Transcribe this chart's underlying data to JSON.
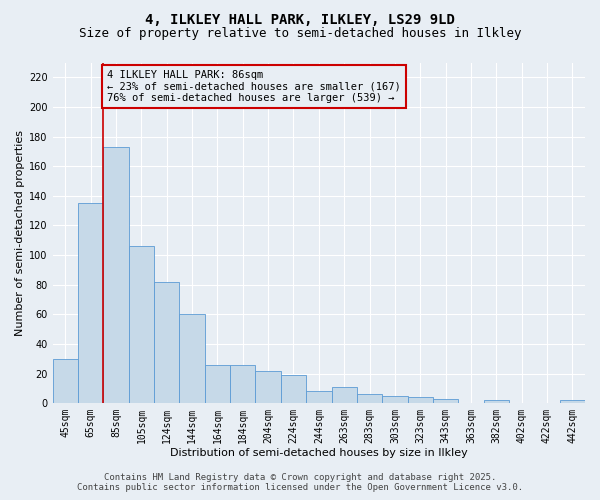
{
  "title": "4, ILKLEY HALL PARK, ILKLEY, LS29 9LD",
  "subtitle": "Size of property relative to semi-detached houses in Ilkley",
  "xlabel": "Distribution of semi-detached houses by size in Ilkley",
  "ylabel": "Number of semi-detached properties",
  "categories": [
    "45sqm",
    "65sqm",
    "85sqm",
    "105sqm",
    "124sqm",
    "144sqm",
    "164sqm",
    "184sqm",
    "204sqm",
    "224sqm",
    "244sqm",
    "263sqm",
    "283sqm",
    "303sqm",
    "323sqm",
    "343sqm",
    "363sqm",
    "382sqm",
    "402sqm",
    "422sqm",
    "442sqm"
  ],
  "values": [
    30,
    135,
    173,
    106,
    82,
    60,
    26,
    26,
    22,
    19,
    8,
    11,
    6,
    5,
    4,
    3,
    0,
    2,
    0,
    0,
    2
  ],
  "bar_color": "#c6d9e8",
  "bar_edge_color": "#5b9bd5",
  "property_line_color": "#cc0000",
  "annotation_box_text": "4 ILKLEY HALL PARK: 86sqm\n← 23% of semi-detached houses are smaller (167)\n76% of semi-detached houses are larger (539) →",
  "annotation_box_color": "#cc0000",
  "ylim": [
    0,
    230
  ],
  "yticks": [
    0,
    20,
    40,
    60,
    80,
    100,
    120,
    140,
    160,
    180,
    200,
    220
  ],
  "bg_color": "#e8eef4",
  "grid_color": "#ffffff",
  "footer_line1": "Contains HM Land Registry data © Crown copyright and database right 2025.",
  "footer_line2": "Contains public sector information licensed under the Open Government Licence v3.0.",
  "title_fontsize": 10,
  "subtitle_fontsize": 9,
  "axis_label_fontsize": 8,
  "tick_fontsize": 7,
  "annotation_fontsize": 7.5,
  "footer_fontsize": 6.5
}
